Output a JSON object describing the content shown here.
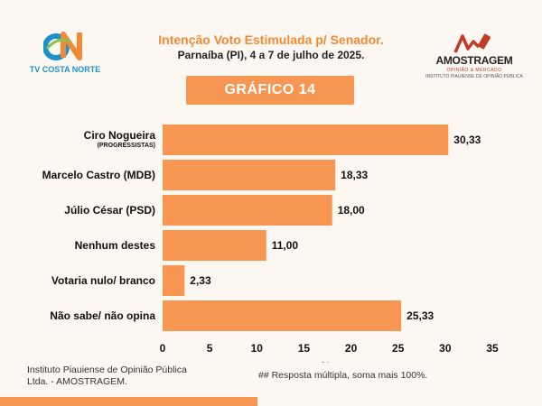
{
  "header": {
    "left_logo_text": "TV COSTA NORTE",
    "title": "Intenção Voto Estimulada p/ Senador.",
    "subtitle": "Parnaíba (PI), 4 a 7 de julho de 2025.",
    "right_logo_name": "AMOSTRAGEM",
    "right_logo_tag": "OPINIÃO & MERCADO",
    "right_logo_sub": "INSTITUTO PIAUIENSE DE OPINIÃO PÚBLICA"
  },
  "badge": {
    "label": "GRÁFICO 14"
  },
  "colors": {
    "bar": "#f79552",
    "accent": "#f08a34",
    "logo_blue": "#1b93c9",
    "logo_red": "#c23b2a"
  },
  "chart_data": {
    "type": "bar",
    "orientation": "horizontal",
    "categories": [
      "Ciro Nogueira",
      "Marcelo Castro (MDB)",
      "Júlio César (PSD)",
      "Nenhum destes",
      "Votaria nulo/ branco",
      "Não sabe/ não opina"
    ],
    "category_sublabels": [
      "(PROGRESSISTAS)",
      "",
      "",
      "",
      "",
      ""
    ],
    "values": [
      30.33,
      18.33,
      18.0,
      11.0,
      2.33,
      25.33
    ],
    "value_labels": [
      "30,33",
      "18,33",
      "18,00",
      "11,00",
      "2,33",
      "25,33"
    ],
    "xlim": [
      0,
      35
    ],
    "xticks": [
      0,
      5,
      10,
      15,
      20,
      25,
      30,
      35
    ],
    "xlabel": "%",
    "grid": false
  },
  "footer": {
    "source": "Instituto Piauiense de Opinião Pública Ltda. - AMOSTRAGEM.",
    "note": "## Resposta múltipla, soma mais 100%."
  }
}
